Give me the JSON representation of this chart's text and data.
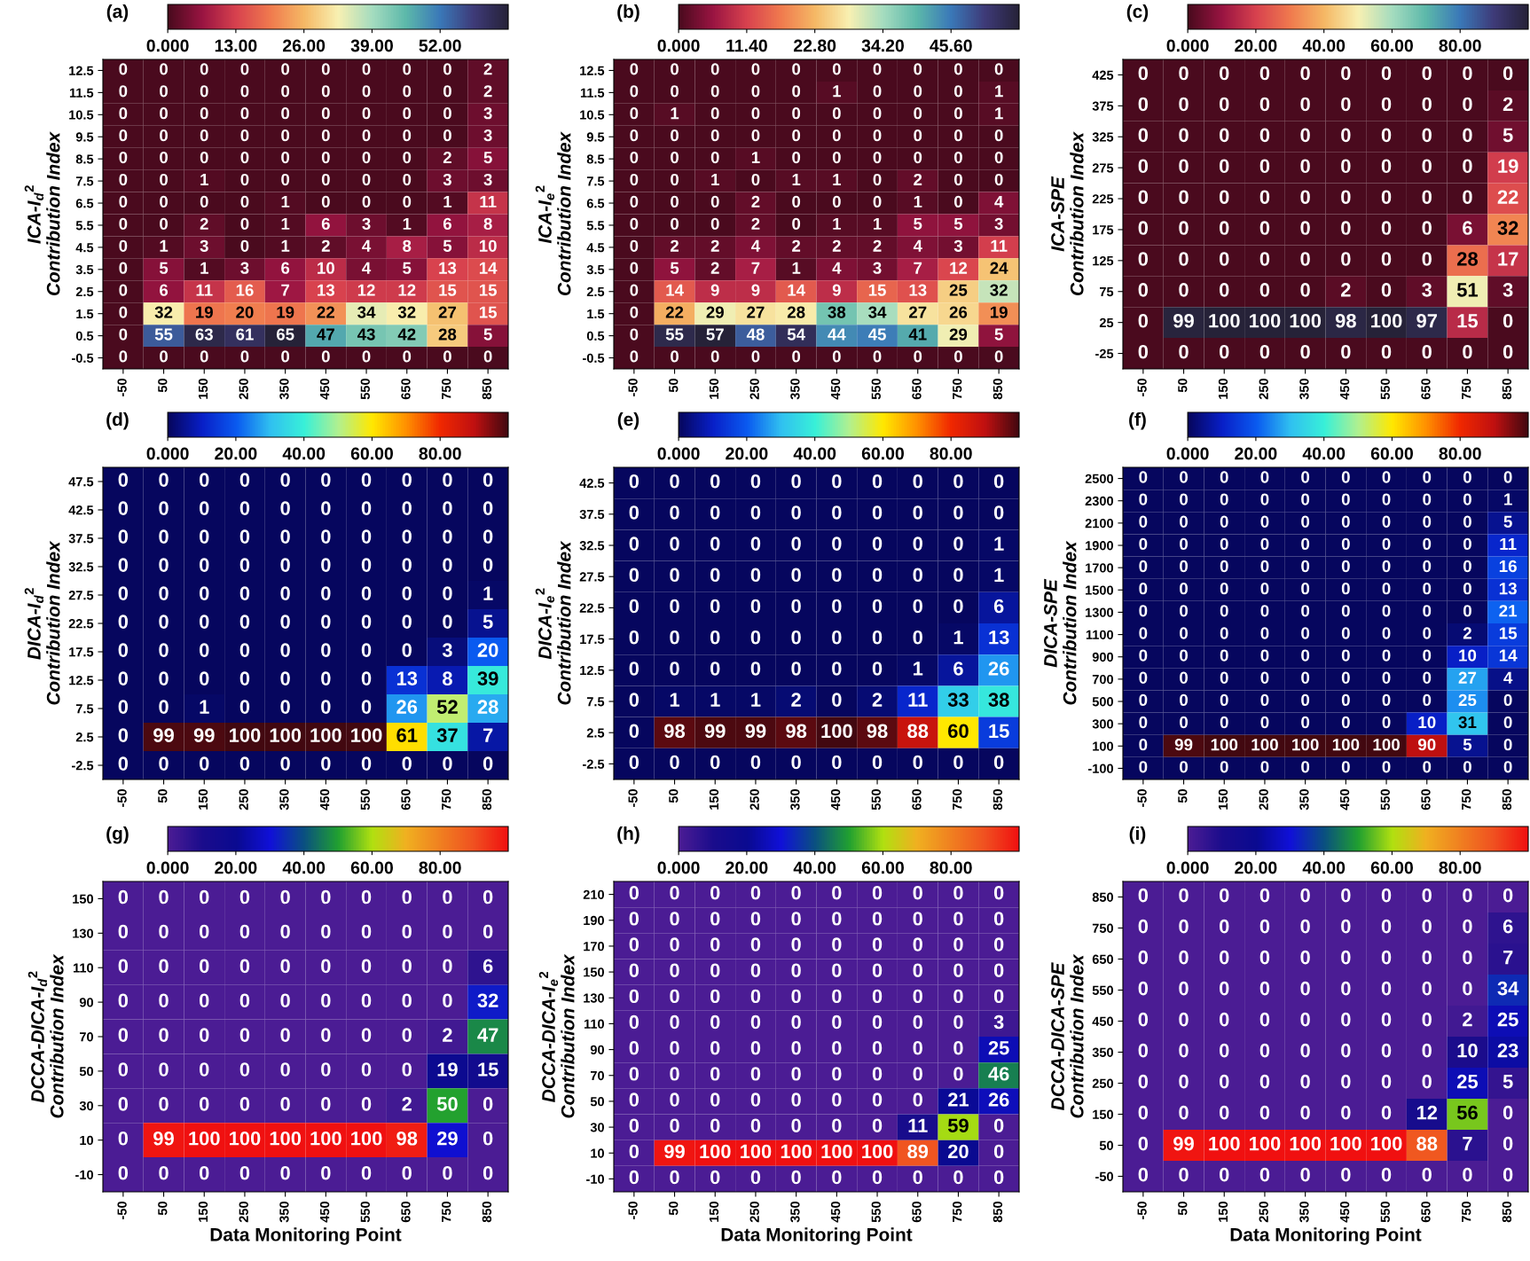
{
  "chart_data": [
    {
      "type": "heatmap",
      "title": "(a)",
      "ylabel": "ICA-I$_{d}$$^{2}$\nContribution Index",
      "categories": [
        "-50",
        "50",
        "150",
        "250",
        "350",
        "450",
        "550",
        "650",
        "750",
        "850"
      ],
      "y_categories": [
        "12.5",
        "11.5",
        "10.5",
        "9.5",
        "8.5",
        "7.5",
        "6.5",
        "5.5",
        "4.5",
        "3.5",
        "2.5",
        "1.5",
        "0.5",
        "-0.5"
      ],
      "cells": [
        [
          0,
          0,
          0,
          0,
          0,
          0,
          0,
          0,
          0,
          2
        ],
        [
          0,
          0,
          0,
          0,
          0,
          0,
          0,
          0,
          0,
          2
        ],
        [
          0,
          0,
          0,
          0,
          0,
          0,
          0,
          0,
          0,
          3
        ],
        [
          0,
          0,
          0,
          0,
          0,
          0,
          0,
          0,
          0,
          3
        ],
        [
          0,
          0,
          0,
          0,
          0,
          0,
          0,
          0,
          2,
          5
        ],
        [
          0,
          0,
          1,
          0,
          0,
          0,
          0,
          0,
          3,
          3
        ],
        [
          0,
          0,
          0,
          0,
          1,
          0,
          0,
          0,
          1,
          11
        ],
        [
          0,
          0,
          2,
          0,
          1,
          6,
          3,
          1,
          6,
          8
        ],
        [
          0,
          1,
          3,
          0,
          1,
          2,
          4,
          8,
          5,
          10
        ],
        [
          0,
          5,
          1,
          3,
          6,
          10,
          4,
          5,
          13,
          14
        ],
        [
          0,
          6,
          11,
          16,
          7,
          13,
          12,
          12,
          15,
          15
        ],
        [
          0,
          32,
          19,
          20,
          19,
          22,
          34,
          32,
          27,
          15
        ],
        [
          0,
          55,
          63,
          61,
          65,
          47,
          43,
          42,
          28,
          5
        ],
        [
          0,
          0,
          0,
          0,
          0,
          0,
          0,
          0,
          0,
          0
        ]
      ],
      "data_labels": true,
      "clim": [
        0,
        65
      ],
      "cticks": [
        {
          "value": 0,
          "label": "0.000"
        },
        {
          "value": 13,
          "label": "13.00"
        },
        {
          "value": 26,
          "label": "26.00"
        },
        {
          "value": 39,
          "label": "39.00"
        },
        {
          "value": 52,
          "label": "52.00"
        }
      ],
      "colors": [
        "#4a0a1e",
        "#9a1442",
        "#d8424e",
        "#f07a4e",
        "#f5b865",
        "#f8f0b2",
        "#a5dcbf",
        "#5cb8aa",
        "#3a78b8",
        "#3e3a78",
        "#262238"
      ]
    },
    {
      "type": "heatmap",
      "title": "(b)",
      "ylabel": "ICA-I$_{e}$$^{2}$\nContribution Index",
      "categories": [
        "-50",
        "50",
        "150",
        "250",
        "350",
        "450",
        "550",
        "650",
        "750",
        "850"
      ],
      "y_categories": [
        "12.5",
        "11.5",
        "10.5",
        "9.5",
        "8.5",
        "7.5",
        "6.5",
        "5.5",
        "4.5",
        "3.5",
        "2.5",
        "1.5",
        "0.5",
        "-0.5"
      ],
      "cells": [
        [
          0,
          0,
          0,
          0,
          0,
          0,
          0,
          0,
          0,
          0
        ],
        [
          0,
          0,
          0,
          0,
          0,
          1,
          0,
          0,
          0,
          1
        ],
        [
          0,
          1,
          0,
          0,
          0,
          0,
          0,
          0,
          0,
          1
        ],
        [
          0,
          0,
          0,
          0,
          0,
          0,
          0,
          0,
          0,
          0
        ],
        [
          0,
          0,
          0,
          1,
          0,
          0,
          0,
          0,
          0,
          0
        ],
        [
          0,
          0,
          1,
          0,
          1,
          1,
          0,
          2,
          0,
          0
        ],
        [
          0,
          0,
          0,
          2,
          0,
          0,
          0,
          1,
          0,
          4
        ],
        [
          0,
          0,
          0,
          2,
          0,
          1,
          1,
          5,
          5,
          3
        ],
        [
          0,
          2,
          2,
          4,
          2,
          2,
          2,
          4,
          3,
          11
        ],
        [
          0,
          5,
          2,
          7,
          1,
          4,
          3,
          7,
          12,
          24
        ],
        [
          0,
          14,
          9,
          9,
          14,
          9,
          15,
          13,
          25,
          32
        ],
        [
          0,
          22,
          29,
          27,
          28,
          38,
          34,
          27,
          26,
          19
        ],
        [
          0,
          55,
          57,
          48,
          54,
          44,
          45,
          41,
          29,
          5
        ],
        [
          0,
          0,
          0,
          0,
          0,
          0,
          0,
          0,
          0,
          0
        ]
      ],
      "data_labels": true,
      "clim": [
        0,
        57
      ],
      "cticks": [
        {
          "value": 0,
          "label": "0.000"
        },
        {
          "value": 11.4,
          "label": "11.40"
        },
        {
          "value": 22.8,
          "label": "22.80"
        },
        {
          "value": 34.2,
          "label": "34.20"
        },
        {
          "value": 45.6,
          "label": "45.60"
        }
      ],
      "colors": [
        "#4a0a1e",
        "#9a1442",
        "#d8424e",
        "#f07a4e",
        "#f5b865",
        "#f8f0b2",
        "#a5dcbf",
        "#5cb8aa",
        "#3a78b8",
        "#3e3a78",
        "#262238"
      ]
    },
    {
      "type": "heatmap",
      "title": "(c)",
      "ylabel": "ICA-SPE\nContribution Index",
      "categories": [
        "-50",
        "50",
        "150",
        "250",
        "350",
        "450",
        "550",
        "650",
        "750",
        "850"
      ],
      "y_categories": [
        "425",
        "375",
        "325",
        "275",
        "225",
        "175",
        "125",
        "75",
        "25",
        "-25"
      ],
      "cells": [
        [
          0,
          0,
          0,
          0,
          0,
          0,
          0,
          0,
          0,
          0
        ],
        [
          0,
          0,
          0,
          0,
          0,
          0,
          0,
          0,
          0,
          2
        ],
        [
          0,
          0,
          0,
          0,
          0,
          0,
          0,
          0,
          0,
          5
        ],
        [
          0,
          0,
          0,
          0,
          0,
          0,
          0,
          0,
          0,
          19
        ],
        [
          0,
          0,
          0,
          0,
          0,
          0,
          0,
          0,
          0,
          22
        ],
        [
          0,
          0,
          0,
          0,
          0,
          0,
          0,
          0,
          6,
          32
        ],
        [
          0,
          0,
          0,
          0,
          0,
          0,
          0,
          0,
          28,
          17
        ],
        [
          0,
          0,
          0,
          0,
          0,
          2,
          0,
          3,
          51,
          3
        ],
        [
          0,
          99,
          100,
          100,
          100,
          98,
          100,
          97,
          15,
          0
        ],
        [
          0,
          0,
          0,
          0,
          0,
          0,
          0,
          0,
          0,
          0
        ]
      ],
      "data_labels": true,
      "clim": [
        0,
        100
      ],
      "cticks": [
        {
          "value": 0,
          "label": "0.000"
        },
        {
          "value": 20,
          "label": "20.00"
        },
        {
          "value": 40,
          "label": "40.00"
        },
        {
          "value": 60,
          "label": "60.00"
        },
        {
          "value": 80,
          "label": "80.00"
        }
      ],
      "colors": [
        "#4a0a1e",
        "#9a1442",
        "#d8424e",
        "#f07a4e",
        "#f5b865",
        "#f8f0b2",
        "#a5dcbf",
        "#5cb8aa",
        "#3a78b8",
        "#3e3a78",
        "#262238"
      ]
    },
    {
      "type": "heatmap",
      "title": "(d)",
      "ylabel": "DICA-I$_{d}$$^{2}$\nContribution Index",
      "categories": [
        "-50",
        "50",
        "150",
        "250",
        "350",
        "450",
        "550",
        "650",
        "750",
        "850"
      ],
      "y_categories": [
        "47.5",
        "42.5",
        "37.5",
        "32.5",
        "27.5",
        "22.5",
        "17.5",
        "12.5",
        "7.5",
        "2.5",
        "-2.5"
      ],
      "cells": [
        [
          0,
          0,
          0,
          0,
          0,
          0,
          0,
          0,
          0,
          0
        ],
        [
          0,
          0,
          0,
          0,
          0,
          0,
          0,
          0,
          0,
          0
        ],
        [
          0,
          0,
          0,
          0,
          0,
          0,
          0,
          0,
          0,
          0
        ],
        [
          0,
          0,
          0,
          0,
          0,
          0,
          0,
          0,
          0,
          0
        ],
        [
          0,
          0,
          0,
          0,
          0,
          0,
          0,
          0,
          0,
          1
        ],
        [
          0,
          0,
          0,
          0,
          0,
          0,
          0,
          0,
          0,
          5
        ],
        [
          0,
          0,
          0,
          0,
          0,
          0,
          0,
          0,
          3,
          20
        ],
        [
          0,
          0,
          0,
          0,
          0,
          0,
          0,
          13,
          8,
          39
        ],
        [
          0,
          0,
          1,
          0,
          0,
          0,
          0,
          26,
          52,
          28
        ],
        [
          0,
          99,
          99,
          100,
          100,
          100,
          100,
          61,
          37,
          7
        ],
        [
          0,
          0,
          0,
          0,
          0,
          0,
          0,
          0,
          0,
          0
        ]
      ],
      "data_labels": true,
      "clim": [
        0,
        100
      ],
      "cticks": [
        {
          "value": 0,
          "label": "0.000"
        },
        {
          "value": 20,
          "label": "20.00"
        },
        {
          "value": 40,
          "label": "40.00"
        },
        {
          "value": 60,
          "label": "60.00"
        },
        {
          "value": 80,
          "label": "80.00"
        }
      ],
      "colors": [
        "#06065e",
        "#0820c8",
        "#0a5af0",
        "#30c0f0",
        "#38f0d8",
        "#b0f090",
        "#ffe800",
        "#ff9000",
        "#f02800",
        "#c01010",
        "#420810"
      ]
    },
    {
      "type": "heatmap",
      "title": "(e)",
      "ylabel": "DICA-I$_{e}$$^{2}$\nContribution Index",
      "categories": [
        "-50",
        "50",
        "150",
        "250",
        "350",
        "450",
        "550",
        "650",
        "750",
        "850"
      ],
      "y_categories": [
        "42.5",
        "37.5",
        "32.5",
        "27.5",
        "22.5",
        "17.5",
        "12.5",
        "7.5",
        "2.5",
        "-2.5"
      ],
      "cells": [
        [
          0,
          0,
          0,
          0,
          0,
          0,
          0,
          0,
          0,
          0
        ],
        [
          0,
          0,
          0,
          0,
          0,
          0,
          0,
          0,
          0,
          0
        ],
        [
          0,
          0,
          0,
          0,
          0,
          0,
          0,
          0,
          0,
          1
        ],
        [
          0,
          0,
          0,
          0,
          0,
          0,
          0,
          0,
          0,
          1
        ],
        [
          0,
          0,
          0,
          0,
          0,
          0,
          0,
          0,
          0,
          6
        ],
        [
          0,
          0,
          0,
          0,
          0,
          0,
          0,
          0,
          1,
          13
        ],
        [
          0,
          0,
          0,
          0,
          0,
          0,
          0,
          1,
          6,
          26
        ],
        [
          0,
          1,
          1,
          1,
          2,
          0,
          2,
          11,
          33,
          38
        ],
        [
          0,
          98,
          99,
          99,
          98,
          100,
          98,
          88,
          60,
          15
        ],
        [
          0,
          0,
          0,
          0,
          0,
          0,
          0,
          0,
          0,
          0
        ]
      ],
      "data_labels": true,
      "clim": [
        0,
        100
      ],
      "cticks": [
        {
          "value": 0,
          "label": "0.000"
        },
        {
          "value": 20,
          "label": "20.00"
        },
        {
          "value": 40,
          "label": "40.00"
        },
        {
          "value": 60,
          "label": "60.00"
        },
        {
          "value": 80,
          "label": "80.00"
        }
      ],
      "colors": [
        "#06065e",
        "#0820c8",
        "#0a5af0",
        "#30c0f0",
        "#38f0d8",
        "#b0f090",
        "#ffe800",
        "#ff9000",
        "#f02800",
        "#c01010",
        "#420810"
      ]
    },
    {
      "type": "heatmap",
      "title": "(f)",
      "ylabel": "DICA-SPE\nContribution Index",
      "categories": [
        "-50",
        "50",
        "150",
        "250",
        "350",
        "450",
        "550",
        "650",
        "750",
        "850"
      ],
      "y_categories": [
        "2500",
        "2300",
        "2100",
        "1900",
        "1700",
        "1500",
        "1300",
        "1100",
        "900",
        "700",
        "500",
        "300",
        "100",
        "-100"
      ],
      "cells": [
        [
          0,
          0,
          0,
          0,
          0,
          0,
          0,
          0,
          0,
          0
        ],
        [
          0,
          0,
          0,
          0,
          0,
          0,
          0,
          0,
          0,
          1
        ],
        [
          0,
          0,
          0,
          0,
          0,
          0,
          0,
          0,
          0,
          5
        ],
        [
          0,
          0,
          0,
          0,
          0,
          0,
          0,
          0,
          0,
          11
        ],
        [
          0,
          0,
          0,
          0,
          0,
          0,
          0,
          0,
          0,
          16
        ],
        [
          0,
          0,
          0,
          0,
          0,
          0,
          0,
          0,
          0,
          13
        ],
        [
          0,
          0,
          0,
          0,
          0,
          0,
          0,
          0,
          0,
          21
        ],
        [
          0,
          0,
          0,
          0,
          0,
          0,
          0,
          0,
          2,
          15
        ],
        [
          0,
          0,
          0,
          0,
          0,
          0,
          0,
          0,
          10,
          14
        ],
        [
          0,
          0,
          0,
          0,
          0,
          0,
          0,
          0,
          27,
          4
        ],
        [
          0,
          0,
          0,
          0,
          0,
          0,
          0,
          0,
          25,
          0
        ],
        [
          0,
          0,
          0,
          0,
          0,
          0,
          0,
          10,
          31,
          0
        ],
        [
          0,
          99,
          100,
          100,
          100,
          100,
          100,
          90,
          5,
          0
        ],
        [
          0,
          0,
          0,
          0,
          0,
          0,
          0,
          0,
          0,
          0
        ]
      ],
      "data_labels": true,
      "clim": [
        0,
        100
      ],
      "cticks": [
        {
          "value": 0,
          "label": "0.000"
        },
        {
          "value": 20,
          "label": "20.00"
        },
        {
          "value": 40,
          "label": "40.00"
        },
        {
          "value": 60,
          "label": "60.00"
        },
        {
          "value": 80,
          "label": "80.00"
        }
      ],
      "colors": [
        "#06065e",
        "#0820c8",
        "#0a5af0",
        "#30c0f0",
        "#38f0d8",
        "#b0f090",
        "#ffe800",
        "#ff9000",
        "#f02800",
        "#c01010",
        "#420810"
      ]
    },
    {
      "type": "heatmap",
      "title": "(g)",
      "xlabel": "Data Monitoring Point",
      "ylabel": "DCCA-DICA-I$_{d}$$^{2}$\nContribution Index",
      "categories": [
        "-50",
        "50",
        "150",
        "250",
        "350",
        "450",
        "550",
        "650",
        "750",
        "850"
      ],
      "y_categories": [
        "150",
        "130",
        "110",
        "90",
        "70",
        "50",
        "30",
        "10",
        "-10"
      ],
      "cells": [
        [
          0,
          0,
          0,
          0,
          0,
          0,
          0,
          0,
          0,
          0
        ],
        [
          0,
          0,
          0,
          0,
          0,
          0,
          0,
          0,
          0,
          0
        ],
        [
          0,
          0,
          0,
          0,
          0,
          0,
          0,
          0,
          0,
          6
        ],
        [
          0,
          0,
          0,
          0,
          0,
          0,
          0,
          0,
          0,
          32
        ],
        [
          0,
          0,
          0,
          0,
          0,
          0,
          0,
          0,
          2,
          47
        ],
        [
          0,
          0,
          0,
          0,
          0,
          0,
          0,
          0,
          19,
          15
        ],
        [
          0,
          0,
          0,
          0,
          0,
          0,
          0,
          2,
          50,
          0
        ],
        [
          0,
          99,
          100,
          100,
          100,
          100,
          100,
          98,
          29,
          0
        ],
        [
          0,
          0,
          0,
          0,
          0,
          0,
          0,
          0,
          0,
          0
        ]
      ],
      "data_labels": true,
      "clim": [
        0,
        100
      ],
      "cticks": [
        {
          "value": 0,
          "label": "0.000"
        },
        {
          "value": 20,
          "label": "20.00"
        },
        {
          "value": 40,
          "label": "40.00"
        },
        {
          "value": 60,
          "label": "60.00"
        },
        {
          "value": 80,
          "label": "80.00"
        }
      ],
      "colors": [
        "#4b1c94",
        "#1a0c8c",
        "#0a0a90",
        "#1010d8",
        "#0a5080",
        "#20a030",
        "#b0e010",
        "#f0b020",
        "#f08020",
        "#f05020",
        "#f01010"
      ]
    },
    {
      "type": "heatmap",
      "title": "(h)",
      "xlabel": "Data Monitoring Point",
      "ylabel": "DCCA-DICA-I$_{e}$$^{2}$\nContribution Index",
      "categories": [
        "-50",
        "50",
        "150",
        "250",
        "350",
        "450",
        "550",
        "650",
        "750",
        "850"
      ],
      "y_categories": [
        "210",
        "190",
        "170",
        "150",
        "130",
        "110",
        "90",
        "70",
        "50",
        "30",
        "10",
        "-10"
      ],
      "cells": [
        [
          0,
          0,
          0,
          0,
          0,
          0,
          0,
          0,
          0,
          0
        ],
        [
          0,
          0,
          0,
          0,
          0,
          0,
          0,
          0,
          0,
          0
        ],
        [
          0,
          0,
          0,
          0,
          0,
          0,
          0,
          0,
          0,
          0
        ],
        [
          0,
          0,
          0,
          0,
          0,
          0,
          0,
          0,
          0,
          0
        ],
        [
          0,
          0,
          0,
          0,
          0,
          0,
          0,
          0,
          0,
          0
        ],
        [
          0,
          0,
          0,
          0,
          0,
          0,
          0,
          0,
          0,
          3
        ],
        [
          0,
          0,
          0,
          0,
          0,
          0,
          0,
          0,
          0,
          25
        ],
        [
          0,
          0,
          0,
          0,
          0,
          0,
          0,
          0,
          0,
          46
        ],
        [
          0,
          0,
          0,
          0,
          0,
          0,
          0,
          0,
          21,
          26
        ],
        [
          0,
          0,
          0,
          0,
          0,
          0,
          0,
          11,
          59,
          0
        ],
        [
          0,
          99,
          100,
          100,
          100,
          100,
          100,
          89,
          20,
          0
        ],
        [
          0,
          0,
          0,
          0,
          0,
          0,
          0,
          0,
          0,
          0
        ]
      ],
      "data_labels": true,
      "clim": [
        0,
        100
      ],
      "cticks": [
        {
          "value": 0,
          "label": "0.000"
        },
        {
          "value": 20,
          "label": "20.00"
        },
        {
          "value": 40,
          "label": "40.00"
        },
        {
          "value": 60,
          "label": "60.00"
        },
        {
          "value": 80,
          "label": "80.00"
        }
      ],
      "colors": [
        "#4b1c94",
        "#1a0c8c",
        "#0a0a90",
        "#1010d8",
        "#0a5080",
        "#20a030",
        "#b0e010",
        "#f0b020",
        "#f08020",
        "#f05020",
        "#f01010"
      ]
    },
    {
      "type": "heatmap",
      "title": "(i)",
      "xlabel": "Data Monitoring Point",
      "ylabel": "DCCA-DICA-SPE\nContribution Index",
      "categories": [
        "-50",
        "50",
        "150",
        "250",
        "350",
        "450",
        "550",
        "650",
        "750",
        "850"
      ],
      "y_categories": [
        "850",
        "750",
        "650",
        "550",
        "450",
        "350",
        "250",
        "150",
        "50",
        "-50"
      ],
      "cells": [
        [
          0,
          0,
          0,
          0,
          0,
          0,
          0,
          0,
          0,
          0
        ],
        [
          0,
          0,
          0,
          0,
          0,
          0,
          0,
          0,
          0,
          6
        ],
        [
          0,
          0,
          0,
          0,
          0,
          0,
          0,
          0,
          0,
          7
        ],
        [
          0,
          0,
          0,
          0,
          0,
          0,
          0,
          0,
          0,
          34
        ],
        [
          0,
          0,
          0,
          0,
          0,
          0,
          0,
          0,
          2,
          25
        ],
        [
          0,
          0,
          0,
          0,
          0,
          0,
          0,
          0,
          10,
          23
        ],
        [
          0,
          0,
          0,
          0,
          0,
          0,
          0,
          0,
          25,
          5
        ],
        [
          0,
          0,
          0,
          0,
          0,
          0,
          0,
          12,
          56,
          0
        ],
        [
          0,
          99,
          100,
          100,
          100,
          100,
          100,
          88,
          7,
          0
        ],
        [
          0,
          0,
          0,
          0,
          0,
          0,
          0,
          0,
          0,
          0
        ]
      ],
      "data_labels": true,
      "clim": [
        0,
        100
      ],
      "cticks": [
        {
          "value": 0,
          "label": "0.000"
        },
        {
          "value": 20,
          "label": "20.00"
        },
        {
          "value": 40,
          "label": "40.00"
        },
        {
          "value": 60,
          "label": "60.00"
        },
        {
          "value": 80,
          "label": "80.00"
        }
      ],
      "colors": [
        "#4b1c94",
        "#1a0c8c",
        "#0a0a90",
        "#1010d8",
        "#0a5080",
        "#20a030",
        "#b0e010",
        "#f0b020",
        "#f08020",
        "#f05020",
        "#f01010"
      ]
    }
  ]
}
